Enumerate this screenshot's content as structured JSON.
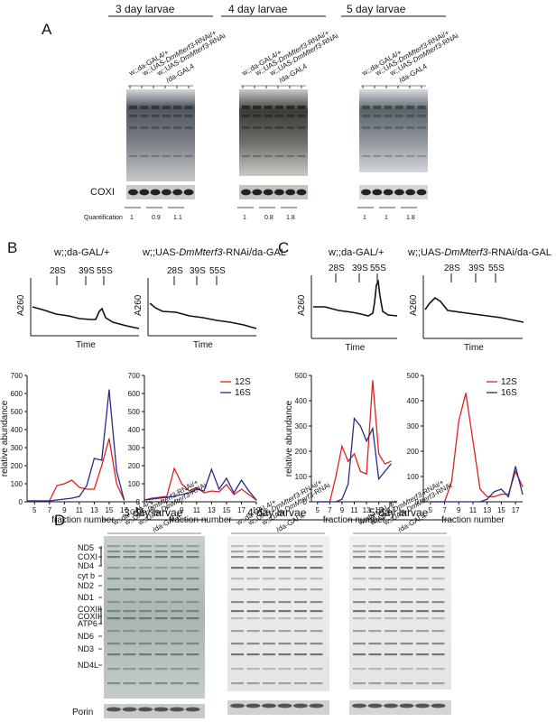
{
  "panels": {
    "A": "A",
    "B": "B",
    "C": "C",
    "D": "D"
  },
  "panel_a": {
    "groups": [
      {
        "title": "3 day larvae",
        "lanes": [
          "w;;da-GAL4/+",
          "w;;UAS-DmMterf3-RNAi/+",
          "w;;UAS-DmMterf3-RNAi/da-GAL4"
        ],
        "quant": [
          "1",
          "0.9",
          "1.1"
        ]
      },
      {
        "title": "4 day larvae",
        "lanes": [
          "w;;da-GAL4/+",
          "w;;UAS-DmMterf3-RNAi/+",
          "w;;UAS-DmMterf3-RNAi/da-GAL4"
        ],
        "quant": [
          "1",
          "0.8",
          "1.8"
        ]
      },
      {
        "title": "5 day larvae",
        "lanes": [
          "w;;da-GAL4/+",
          "w;;UAS-DmMterf3-RNAi/+",
          "w;;UAS-DmMterf3-RNAi/da-GAL4"
        ],
        "quant": [
          "1",
          "1",
          "1.8"
        ]
      }
    ],
    "coxi_label": "COXI",
    "quant_label": "Quantification"
  },
  "panel_b": {
    "left_title": "w;;da-GAL/+",
    "right_title_pre": "w;;UAS-",
    "right_title_italic": "DmMterf3",
    "right_title_post": "-RNAi/da-GAL",
    "markers": [
      "28S",
      "39S",
      "55S"
    ],
    "ylabel_top": "A260",
    "xlabel_top": "Time",
    "ylabel": "relative abundance",
    "xlabel": "fraction number"
  },
  "panel_c": {
    "left_title": "w;;da-GAL/+",
    "right_title_pre": "w;;UAS-",
    "right_title_italic": "DmMterf3",
    "right_title_post": "-RNAi/da-GAL",
    "markers": [
      "28S",
      "39S",
      "55S"
    ],
    "ylabel_top": "A260",
    "xlabel_top": "Time",
    "ylabel": "relative abundance",
    "xlabel": "fraction number"
  },
  "panel_d": {
    "groups": [
      {
        "title": "3 day larvae"
      },
      {
        "title": "4 day larvae"
      },
      {
        "title": "5 day larvae"
      }
    ],
    "lanes": [
      "w;;da-GAL4/+",
      "w;;UAS-DmMterf3-RNAi/+",
      "w;;UAS-DmMterf3-RNAi/da-GAL4"
    ],
    "bands": [
      "ND5",
      "COXI",
      "ND4",
      "cyt b",
      "ND2",
      "ND1",
      "COXIII",
      "COXII",
      "ATP6",
      "ND6",
      "ND3",
      "ND4L"
    ],
    "porin_label": "Porin"
  },
  "chart_data": [
    {
      "type": "line",
      "panel": "B-left",
      "xlabel": "fraction number",
      "ylabel": "relative abundance",
      "xticks": [
        5,
        7,
        9,
        11,
        13,
        15,
        17,
        19
      ],
      "yticks": [
        0,
        100,
        200,
        300,
        400,
        500,
        600,
        700
      ],
      "ylim": [
        0,
        700
      ],
      "xlim": [
        4,
        19
      ],
      "series": [
        {
          "color": "#e02020",
          "x": [
            4,
            5,
            6,
            7,
            8,
            9,
            10,
            11,
            12,
            13,
            14,
            15,
            16,
            17
          ],
          "y": [
            5,
            5,
            5,
            5,
            90,
            100,
            120,
            80,
            70,
            70,
            200,
            350,
            100,
            10
          ]
        },
        {
          "color": "#2a2a8c",
          "x": [
            4,
            5,
            6,
            7,
            8,
            9,
            10,
            11,
            12,
            13,
            14,
            15,
            16,
            17
          ],
          "y": [
            5,
            5,
            5,
            5,
            10,
            15,
            20,
            30,
            90,
            240,
            230,
            620,
            170,
            10
          ]
        }
      ]
    },
    {
      "type": "line",
      "panel": "B-right",
      "xlabel": "fraction number",
      "yticks": [
        0,
        100,
        200,
        300,
        400,
        500,
        600,
        700
      ],
      "xticks": [
        5,
        7,
        9,
        11,
        13,
        15,
        17,
        19
      ],
      "ylim": [
        0,
        700
      ],
      "xlim": [
        4,
        19
      ],
      "legend": [
        "12S",
        "16S"
      ],
      "series": [
        {
          "name": "12S",
          "color": "#e02020",
          "x": [
            4,
            5,
            6,
            7,
            8,
            9,
            10,
            11,
            12,
            13,
            14,
            15,
            16,
            17,
            18,
            19
          ],
          "y": [
            10,
            20,
            25,
            30,
            185,
            100,
            60,
            80,
            50,
            60,
            55,
            95,
            40,
            70,
            40,
            10
          ]
        },
        {
          "name": "16S",
          "color": "#2a2a8c",
          "x": [
            4,
            5,
            6,
            7,
            8,
            9,
            10,
            11,
            12,
            13,
            14,
            15,
            16,
            17,
            18,
            19
          ],
          "y": [
            10,
            15,
            20,
            25,
            30,
            40,
            50,
            70,
            60,
            180,
            70,
            130,
            50,
            120,
            60,
            10
          ]
        }
      ]
    },
    {
      "type": "line",
      "panel": "C-left",
      "xlabel": "fraction number",
      "ylabel": "relative abundance",
      "xticks": [
        5,
        7,
        9,
        11,
        13,
        15,
        17
      ],
      "yticks": [
        0,
        100,
        200,
        300,
        400,
        500
      ],
      "ylim": [
        0,
        500
      ],
      "xlim": [
        4,
        18
      ],
      "series": [
        {
          "color": "#e02020",
          "x": [
            5,
            6,
            7,
            8,
            9,
            10,
            11,
            12,
            13,
            14,
            15,
            16,
            17
          ],
          "y": [
            0,
            0,
            0,
            100,
            220,
            160,
            190,
            120,
            110,
            480,
            190,
            150,
            160
          ]
        },
        {
          "color": "#2a2a8c",
          "x": [
            5,
            6,
            7,
            8,
            9,
            10,
            11,
            12,
            13,
            14,
            15,
            16,
            17
          ],
          "y": [
            0,
            0,
            0,
            0,
            10,
            70,
            330,
            300,
            240,
            290,
            90,
            120,
            150
          ]
        }
      ]
    },
    {
      "type": "line",
      "panel": "C-right",
      "xlabel": "fraction number",
      "xticks": [
        5,
        7,
        9,
        11,
        13,
        15,
        17
      ],
      "yticks": [
        0,
        100,
        200,
        300,
        400,
        500
      ],
      "ylim": [
        0,
        500
      ],
      "xlim": [
        4,
        18
      ],
      "legend": [
        "12S",
        "16S"
      ],
      "series": [
        {
          "name": "12S",
          "color": "#e02020",
          "x": [
            5,
            6,
            7,
            8,
            9,
            10,
            11,
            12,
            13,
            14,
            15,
            16,
            17,
            18
          ],
          "y": [
            0,
            0,
            0,
            80,
            320,
            430,
            240,
            50,
            20,
            20,
            30,
            30,
            120,
            60
          ]
        },
        {
          "name": "16S",
          "color": "#2a2a8c",
          "x": [
            5,
            6,
            7,
            8,
            9,
            10,
            11,
            12,
            13,
            14,
            15,
            16,
            17,
            18
          ],
          "y": [
            0,
            0,
            0,
            0,
            0,
            0,
            0,
            0,
            10,
            40,
            50,
            20,
            140,
            30
          ]
        }
      ]
    }
  ]
}
